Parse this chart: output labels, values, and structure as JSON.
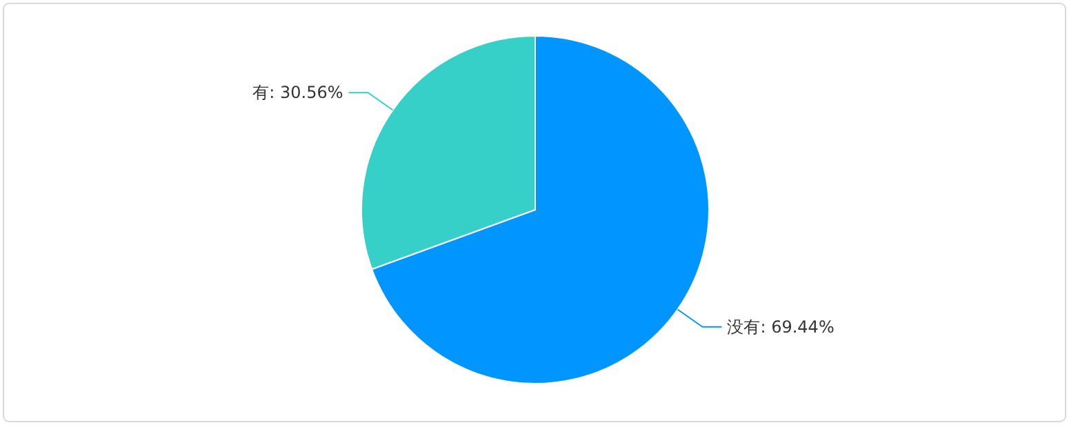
{
  "chart_data": {
    "type": "pie",
    "categories": [
      "没有",
      "有"
    ],
    "values": [
      69.44,
      30.56
    ],
    "colors": [
      "#0095ff",
      "#37d0c8"
    ],
    "value_labels": [
      "69.44%",
      "30.56%"
    ]
  }
}
